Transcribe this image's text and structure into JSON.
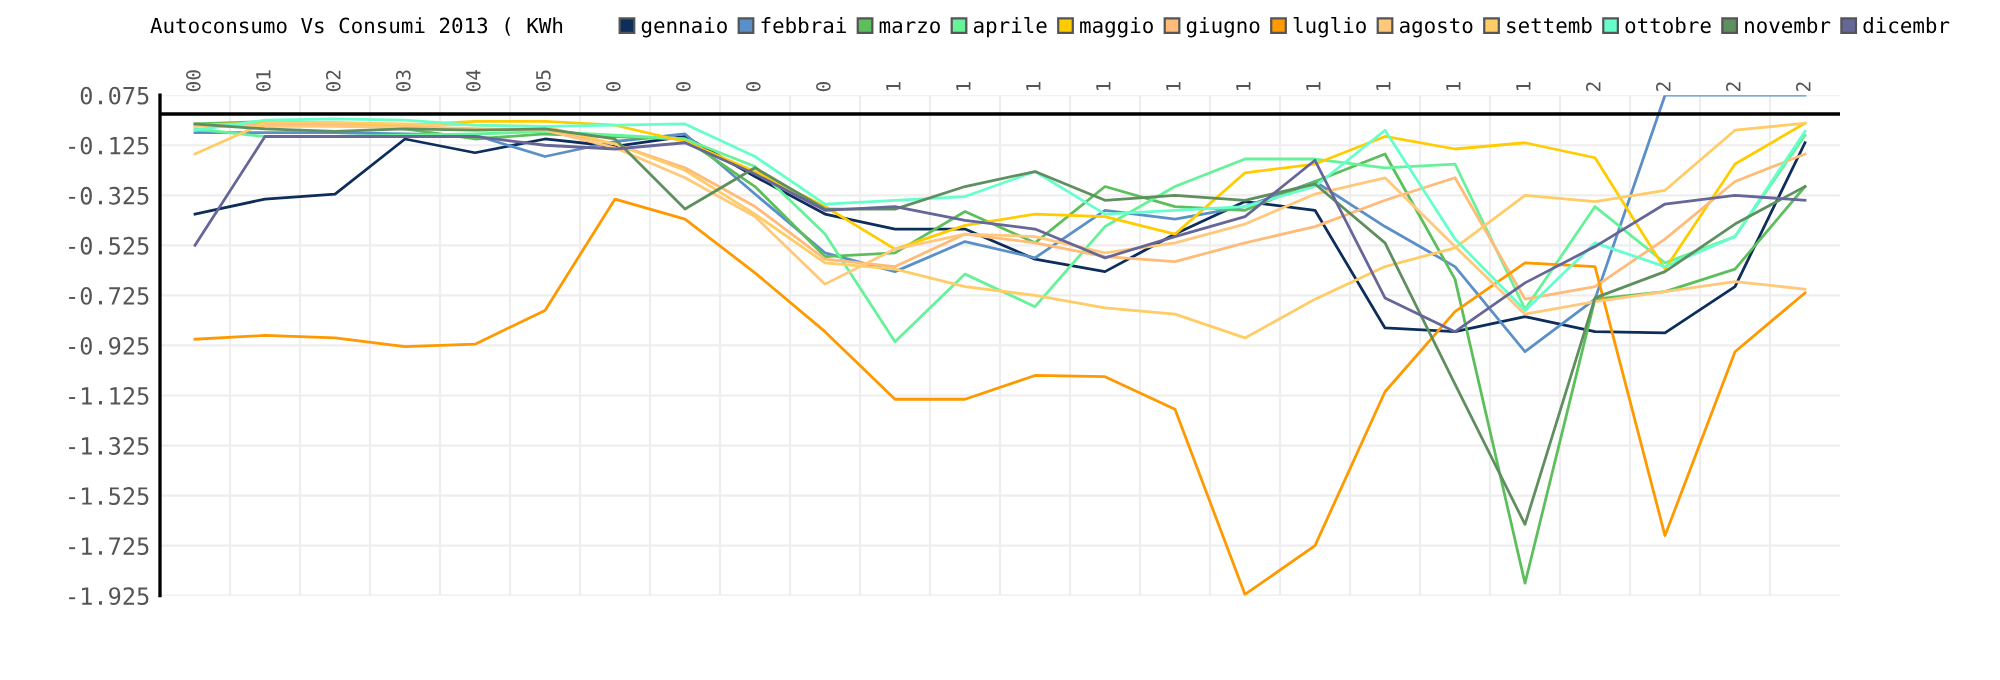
{
  "chart_data": {
    "type": "line",
    "title": "Autoconsumo Vs Consumi 2013 ( KWh",
    "categories": [
      "00",
      "01",
      "02",
      "03",
      "04",
      "05",
      "0",
      "0",
      "0",
      "0",
      "1",
      "1",
      "1",
      "1",
      "1",
      "1",
      "1",
      "1",
      "1",
      "1",
      "2",
      "2",
      "2",
      "2"
    ],
    "ylim": [
      -1.925,
      0.075
    ],
    "yticks": [
      {
        "value": 0.075,
        "label": "0.075"
      },
      {
        "value": -0.125,
        "label": "-0.125"
      },
      {
        "value": -0.325,
        "label": "-0.325"
      },
      {
        "value": -0.525,
        "label": "-0.525"
      },
      {
        "value": -0.725,
        "label": "-0.725"
      },
      {
        "value": -0.925,
        "label": "-0.925"
      },
      {
        "value": -1.125,
        "label": "-1.125"
      },
      {
        "value": -1.325,
        "label": "-1.325"
      },
      {
        "value": -1.525,
        "label": "-1.525"
      },
      {
        "value": -1.725,
        "label": "-1.725"
      },
      {
        "value": -1.925,
        "label": "-1.925"
      }
    ],
    "grid": true,
    "legend": "top right",
    "marker": "none",
    "line_style": "solid",
    "ref_lines": [
      {
        "axis": "y",
        "value": 0,
        "color": "#000000"
      }
    ],
    "series": [
      {
        "name": "gennaio",
        "color": "#0d2d5a",
        "values": [
          -0.4,
          -0.34,
          -0.32,
          -0.1,
          -0.155,
          -0.1,
          -0.13,
          -0.09,
          -0.25,
          -0.4,
          -0.46,
          -0.46,
          -0.58,
          -0.63,
          -0.48,
          -0.35,
          -0.385,
          -0.855,
          -0.87,
          -0.81,
          -0.87,
          -0.875,
          -0.69,
          -0.115
        ]
      },
      {
        "name": "febbrai",
        "color": "#5b8fc7",
        "values": [
          -0.075,
          -0.075,
          -0.075,
          -0.08,
          -0.085,
          -0.17,
          -0.11,
          -0.08,
          -0.32,
          -0.555,
          -0.63,
          -0.51,
          -0.575,
          -0.385,
          -0.42,
          -0.37,
          -0.27,
          -0.45,
          -0.61,
          -0.95,
          -0.74,
          0.075,
          0.075,
          0.075
        ]
      },
      {
        "name": "marzo",
        "color": "#5cbf5c",
        "values": [
          -0.04,
          -0.03,
          -0.04,
          -0.06,
          -0.1,
          -0.08,
          -0.09,
          -0.1,
          -0.29,
          -0.57,
          -0.555,
          -0.39,
          -0.515,
          -0.29,
          -0.37,
          -0.385,
          -0.27,
          -0.16,
          -0.66,
          -1.875,
          -0.74,
          -0.71,
          -0.62,
          -0.29
        ]
      },
      {
        "name": "aprile",
        "color": "#66f299",
        "values": [
          -0.06,
          -0.09,
          -0.09,
          -0.085,
          -0.08,
          -0.07,
          -0.085,
          -0.1,
          -0.21,
          -0.48,
          -0.91,
          -0.64,
          -0.77,
          -0.45,
          -0.29,
          -0.18,
          -0.18,
          -0.215,
          -0.2,
          -0.78,
          -0.37,
          -0.595,
          -0.49,
          -0.085
        ]
      },
      {
        "name": "maggio",
        "color": "#ffcc00",
        "values": [
          -0.045,
          -0.035,
          -0.035,
          -0.045,
          -0.03,
          -0.03,
          -0.045,
          -0.11,
          -0.23,
          -0.37,
          -0.54,
          -0.445,
          -0.4,
          -0.41,
          -0.48,
          -0.235,
          -0.2,
          -0.09,
          -0.14,
          -0.115,
          -0.175,
          -0.62,
          -0.2,
          -0.037
        ]
      },
      {
        "name": "giugno",
        "color": "#ffbb77",
        "values": [
          -0.045,
          -0.045,
          -0.045,
          -0.05,
          -0.06,
          -0.065,
          -0.12,
          -0.215,
          -0.37,
          -0.58,
          -0.61,
          -0.48,
          -0.515,
          -0.57,
          -0.59,
          -0.515,
          -0.45,
          -0.345,
          -0.255,
          -0.74,
          -0.69,
          -0.5,
          -0.27,
          -0.16
        ]
      },
      {
        "name": "luglio",
        "color": "#ff9900",
        "values": [
          -0.9,
          -0.885,
          -0.895,
          -0.93,
          -0.92,
          -0.785,
          -0.34,
          -0.42,
          -0.635,
          -0.87,
          -1.14,
          -1.14,
          -1.045,
          -1.05,
          -1.18,
          -1.92,
          -1.725,
          -1.11,
          -0.79,
          -0.595,
          -0.61,
          -1.685,
          -0.95,
          -0.715
        ]
      },
      {
        "name": "agosto",
        "color": "#ffc87a",
        "values": [
          -0.05,
          -0.05,
          -0.05,
          -0.055,
          -0.06,
          -0.065,
          -0.135,
          -0.255,
          -0.41,
          -0.68,
          -0.54,
          -0.48,
          -0.49,
          -0.555,
          -0.515,
          -0.44,
          -0.32,
          -0.255,
          -0.53,
          -0.8,
          -0.75,
          -0.71,
          -0.67,
          -0.7
        ]
      },
      {
        "name": "settemb",
        "color": "#ffcc66",
        "values": [
          -0.16,
          -0.035,
          -0.035,
          -0.04,
          -0.045,
          -0.05,
          -0.12,
          -0.225,
          -0.4,
          -0.595,
          -0.62,
          -0.69,
          -0.725,
          -0.775,
          -0.8,
          -0.895,
          -0.74,
          -0.61,
          -0.535,
          -0.325,
          -0.35,
          -0.305,
          -0.065,
          -0.037
        ]
      },
      {
        "name": "ottobre",
        "color": "#66ffcc",
        "values": [
          -0.065,
          -0.025,
          -0.02,
          -0.025,
          -0.045,
          -0.05,
          -0.045,
          -0.04,
          -0.17,
          -0.36,
          -0.345,
          -0.33,
          -0.23,
          -0.4,
          -0.385,
          -0.37,
          -0.29,
          -0.065,
          -0.5,
          -0.785,
          -0.515,
          -0.61,
          -0.49,
          -0.07
        ]
      },
      {
        "name": "novembr",
        "color": "#5f8f5f",
        "values": [
          -0.04,
          -0.06,
          -0.07,
          -0.06,
          -0.065,
          -0.06,
          -0.1,
          -0.38,
          -0.215,
          -0.38,
          -0.38,
          -0.29,
          -0.23,
          -0.345,
          -0.325,
          -0.345,
          -0.28,
          -0.515,
          -1.08,
          -1.64,
          -0.735,
          -0.63,
          -0.44,
          -0.29
        ]
      },
      {
        "name": "dicembr",
        "color": "#666699",
        "values": [
          -0.525,
          -0.09,
          -0.09,
          -0.09,
          -0.09,
          -0.125,
          -0.14,
          -0.115,
          -0.24,
          -0.385,
          -0.37,
          -0.425,
          -0.46,
          -0.575,
          -0.49,
          -0.41,
          -0.185,
          -0.735,
          -0.87,
          -0.675,
          -0.53,
          -0.36,
          -0.325,
          -0.345
        ]
      }
    ]
  }
}
